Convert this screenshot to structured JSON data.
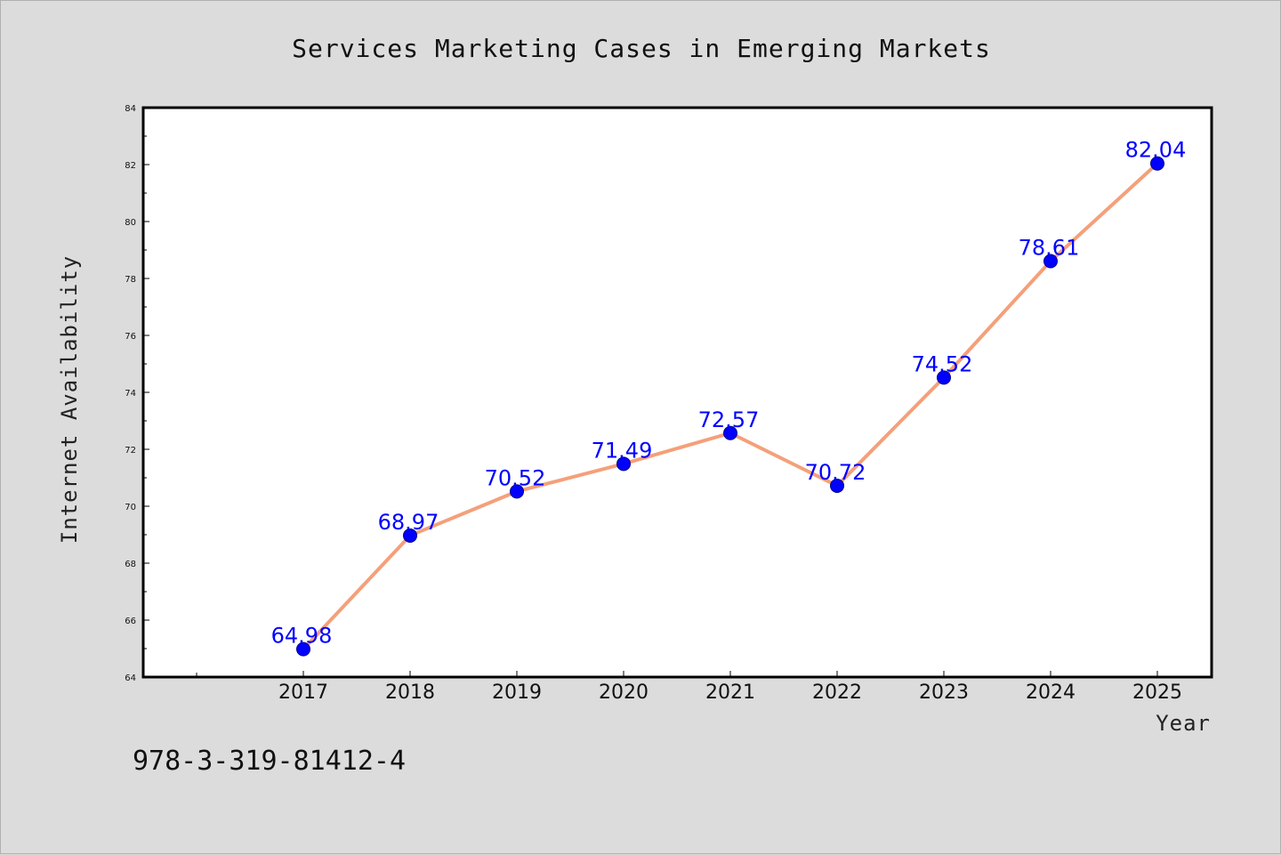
{
  "chart_data": {
    "type": "line",
    "title": "Services Marketing Cases in Emerging Markets",
    "xlabel": "Year",
    "ylabel": "Internet Availability",
    "categories": [
      "2017",
      "2018",
      "2019",
      "2020",
      "2021",
      "2022",
      "2023",
      "2024",
      "2025"
    ],
    "series": [
      {
        "values": [
          64.98,
          68.97,
          70.52,
          71.49,
          72.57,
          70.72,
          74.52,
          78.61,
          82.04
        ],
        "line_color": "#f4a07a",
        "marker_color": "#0000ff"
      }
    ],
    "data_labels": [
      "64.98",
      "68.97",
      "70.52",
      "71.49",
      "72.57",
      "70.72",
      "74.52",
      "78.61",
      "82.04"
    ],
    "yticks": [
      "64",
      "66",
      "68",
      "70",
      "72",
      "74",
      "76",
      "78",
      "80",
      "82",
      "84"
    ],
    "ylim": [
      64,
      84
    ],
    "grid": false,
    "legend": "none"
  },
  "footer": {
    "isbn": "978-3-319-81412-4"
  },
  "colors": {
    "background": "#dcdcdc",
    "plot_background": "#ffffff",
    "line": "#f4a07a",
    "marker": "#0000ff",
    "data_label": "#0000ff"
  }
}
